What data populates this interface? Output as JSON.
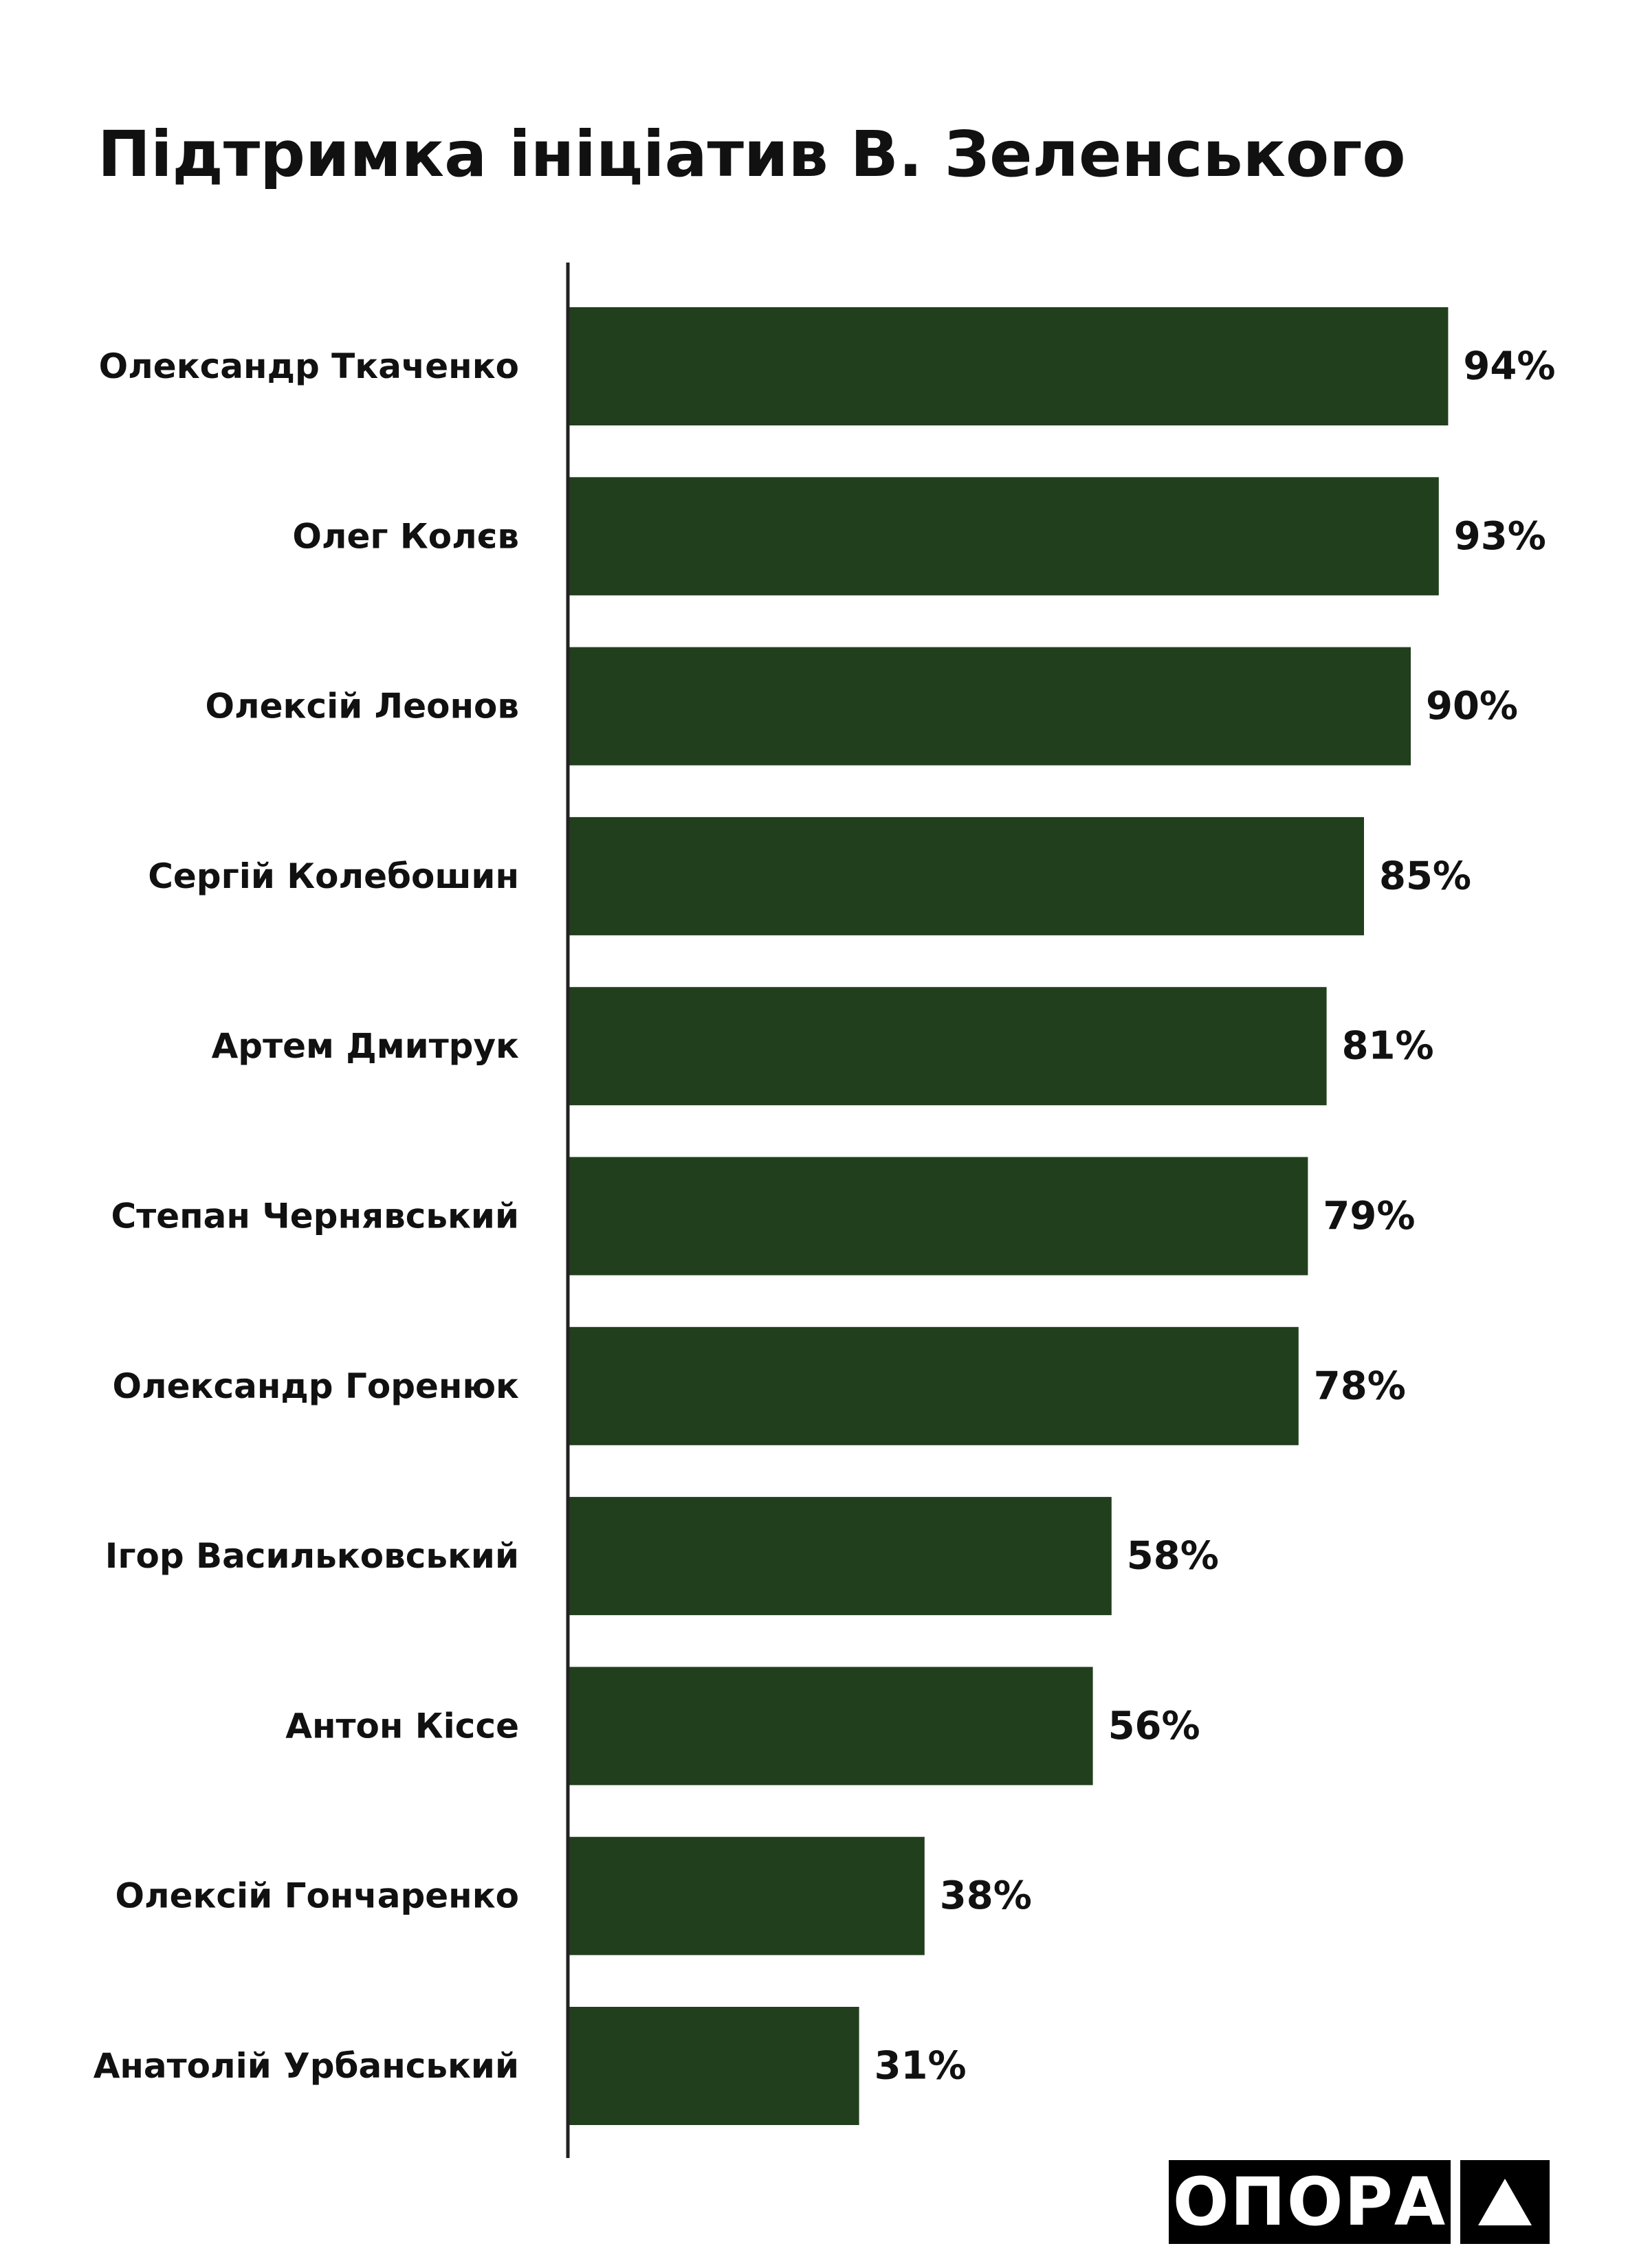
{
  "chart_data": {
    "type": "bar",
    "orientation": "horizontal",
    "title": "Підтримка ініціатив В. Зеленського",
    "categories": [
      "Олександр Ткаченко",
      "Олег Колєв",
      "Олексій Леонов",
      "Сергій Колебошин",
      "Артем Дмитрук",
      "Степан Чернявський",
      "Олександр Горенюк",
      "Ігор Васильковський",
      "Антон Кіссе",
      "Олексій Гончаренко",
      "Анатолій Урбанський"
    ],
    "values": [
      94,
      93,
      90,
      85,
      81,
      79,
      78,
      58,
      56,
      38,
      31
    ],
    "value_labels": [
      "94%",
      "93%",
      "90%",
      "85%",
      "81%",
      "79%",
      "78%",
      "58%",
      "56%",
      "38%",
      "31%"
    ],
    "unit": "%",
    "xlim": [
      0,
      100
    ],
    "grid": false,
    "bar_color": "#213f1c"
  },
  "logo": {
    "text": "ОПОРА"
  }
}
